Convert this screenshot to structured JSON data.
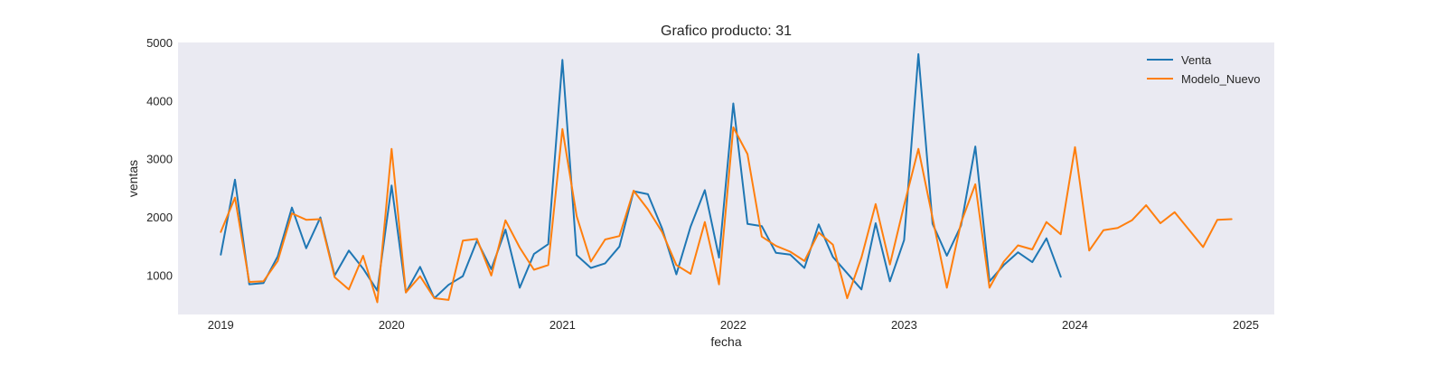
{
  "chart_data": {
    "type": "line",
    "title": "Grafico producto: 31",
    "xlabel": "fecha",
    "ylabel": "ventas",
    "x_start": "2019-01",
    "x_step": "month",
    "xlim": [
      "2018-10",
      "2025-03"
    ],
    "ylim": [
      320,
      5000
    ],
    "yticks": [
      1000,
      2000,
      3000,
      4000,
      5000
    ],
    "xticks": [
      "2019",
      "2020",
      "2021",
      "2022",
      "2023",
      "2024",
      "2025"
    ],
    "grid": false,
    "background": "#eaeaf2",
    "legend_position": "top-right",
    "series": [
      {
        "name": "Venta",
        "color": "#1f77b4",
        "values": [
          1350,
          2640,
          840,
          860,
          1320,
          2160,
          1460,
          1990,
          990,
          1420,
          1110,
          730,
          2540,
          700,
          1140,
          600,
          830,
          980,
          1590,
          1100,
          1780,
          780,
          1360,
          1530,
          4700,
          1340,
          1120,
          1200,
          1490,
          2440,
          2390,
          1800,
          1010,
          1830,
          2460,
          1300,
          3950,
          1880,
          1840,
          1380,
          1350,
          1120,
          1870,
          1310,
          1030,
          750,
          1890,
          890,
          1600,
          4800,
          1880,
          1330,
          1850,
          3210,
          890,
          1170,
          1390,
          1220,
          1630,
          970
        ]
      },
      {
        "name": "Modelo_Nuevo",
        "color": "#ff7f0e",
        "values": [
          1740,
          2330,
          880,
          890,
          1240,
          2060,
          1950,
          1960,
          960,
          750,
          1330,
          530,
          3170,
          700,
          980,
          600,
          570,
          1590,
          1620,
          990,
          1940,
          1470,
          1090,
          1170,
          3510,
          2010,
          1230,
          1610,
          1670,
          2450,
          2130,
          1740,
          1170,
          1020,
          1910,
          840,
          3540,
          3080,
          1660,
          1500,
          1400,
          1240,
          1730,
          1520,
          600,
          1300,
          2220,
          1180,
          2200,
          3170,
          1980,
          780,
          1900,
          2560,
          780,
          1230,
          1510,
          1440,
          1910,
          1700,
          3200,
          1420,
          1770,
          1810,
          1940,
          2200,
          1890,
          2080,
          1780,
          1480,
          1950,
          1960
        ]
      }
    ]
  }
}
